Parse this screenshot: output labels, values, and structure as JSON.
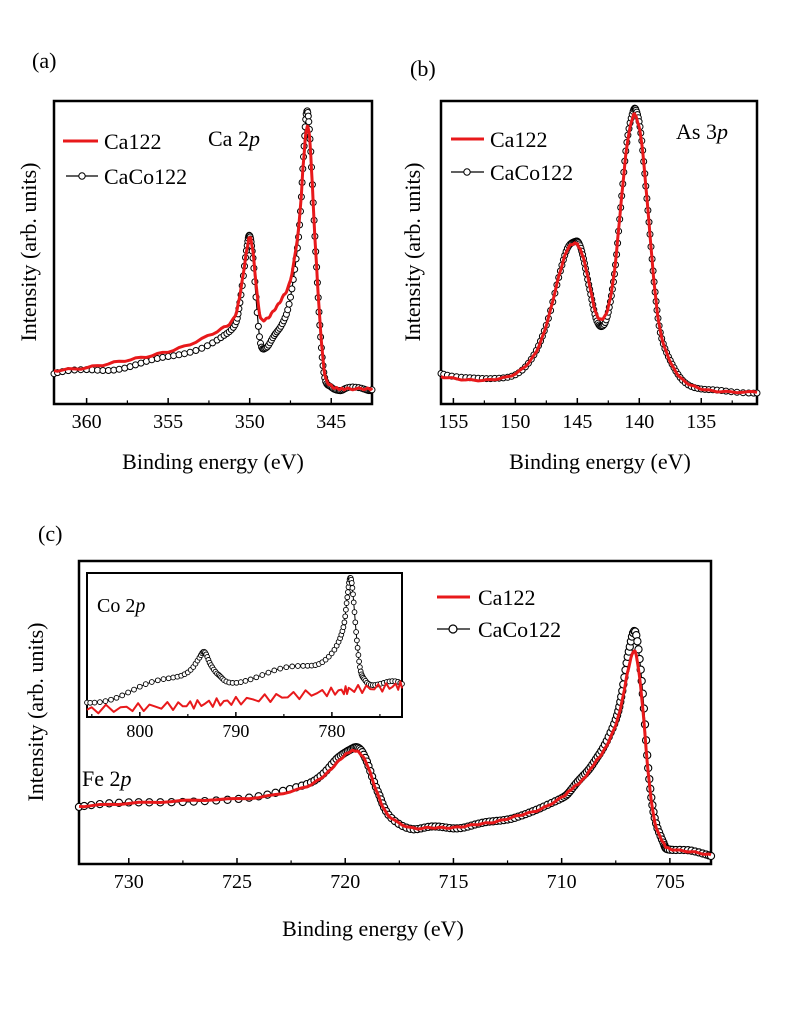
{
  "chart_data": [
    {
      "id": "a",
      "type": "line",
      "panel_label": "(a)",
      "annotation": {
        "text": "Ca ",
        "italic": "p",
        "core": "2"
      },
      "xlabel": "Binding energy (eV)",
      "ylabel": "Intensity (arb. units)",
      "xlim": [
        362,
        342.5
      ],
      "ylim": [
        0,
        1.0
      ],
      "x_ticks": [
        360,
        355,
        350,
        345
      ],
      "x_tick_labels": [
        "360",
        "355",
        "350",
        "345"
      ],
      "legend": [
        "Ca122",
        "CaCo122"
      ],
      "legend_position": "top-left",
      "series": [
        {
          "name": "Ca122",
          "color": "#e8191b",
          "marker": "none",
          "x": [
            362,
            360,
            358,
            356,
            354,
            352,
            351,
            350.6,
            350.2,
            350.0,
            349.8,
            349.4,
            349.0,
            348.5,
            348.0,
            347.5,
            347.0,
            346.7,
            346.5,
            346.3,
            346.0,
            345.7,
            345.4,
            345.0,
            344.5,
            344,
            343,
            342.5
          ],
          "y": [
            0.11,
            0.12,
            0.14,
            0.16,
            0.19,
            0.24,
            0.28,
            0.36,
            0.5,
            0.55,
            0.5,
            0.3,
            0.28,
            0.31,
            0.35,
            0.41,
            0.58,
            0.8,
            0.91,
            0.86,
            0.55,
            0.28,
            0.1,
            0.06,
            0.05,
            0.05,
            0.05,
            0.05
          ]
        },
        {
          "name": "CaCo122",
          "color": "#000000",
          "marker": "circle",
          "x": [
            362,
            360,
            358,
            356,
            354,
            352,
            351,
            350.6,
            350.2,
            350.0,
            349.8,
            349.4,
            349.0,
            348.5,
            348.0,
            347.5,
            347.0,
            346.7,
            346.5,
            346.3,
            346.0,
            345.7,
            345.4,
            345.0,
            344.5,
            344,
            343,
            342.5
          ],
          "y": [
            0.1,
            0.11,
            0.12,
            0.14,
            0.17,
            0.21,
            0.25,
            0.34,
            0.5,
            0.56,
            0.48,
            0.22,
            0.19,
            0.22,
            0.27,
            0.35,
            0.55,
            0.82,
            0.96,
            0.88,
            0.55,
            0.26,
            0.09,
            0.05,
            0.05,
            0.05,
            0.05,
            0.05
          ]
        }
      ]
    },
    {
      "id": "b",
      "type": "line",
      "panel_label": "(b)",
      "annotation": {
        "text": "As ",
        "italic": "p",
        "core": "3"
      },
      "xlabel": "Binding energy (eV)",
      "ylabel": "Intensity (arb. units)",
      "xlim": [
        156,
        130.5
      ],
      "ylim": [
        0,
        1.0
      ],
      "x_ticks": [
        155,
        150,
        145,
        140,
        135
      ],
      "x_tick_labels": [
        "155",
        "150",
        "145",
        "140",
        "135"
      ],
      "legend": [
        "Ca122",
        "CaCo122"
      ],
      "legend_position": "top-left",
      "series": [
        {
          "name": "Ca122",
          "color": "#e8191b",
          "marker": "none",
          "x": [
            156,
            154,
            152,
            150,
            148.5,
            147.5,
            146.5,
            145.8,
            145.2,
            144.9,
            144.5,
            144,
            143.5,
            143,
            142.5,
            142,
            141.5,
            141,
            140.5,
            140.2,
            139.8,
            139.3,
            138.8,
            138.3,
            137.5,
            136.5,
            135,
            133,
            130.5
          ],
          "y": [
            0.09,
            0.08,
            0.08,
            0.1,
            0.16,
            0.26,
            0.42,
            0.51,
            0.53,
            0.52,
            0.48,
            0.39,
            0.3,
            0.28,
            0.32,
            0.44,
            0.65,
            0.85,
            0.95,
            0.94,
            0.86,
            0.64,
            0.4,
            0.24,
            0.14,
            0.08,
            0.05,
            0.04,
            0.04
          ]
        },
        {
          "name": "CaCo122",
          "color": "#000000",
          "marker": "circle",
          "x": [
            156,
            154,
            152,
            150,
            148.5,
            147.5,
            146.5,
            145.8,
            145.2,
            144.9,
            144.5,
            144,
            143.5,
            143,
            142.5,
            142,
            141.5,
            141,
            140.5,
            140.2,
            139.8,
            139.3,
            138.8,
            138.3,
            137.5,
            136.5,
            135,
            133,
            130.5
          ],
          "y": [
            0.1,
            0.09,
            0.08,
            0.1,
            0.16,
            0.26,
            0.42,
            0.51,
            0.54,
            0.53,
            0.48,
            0.38,
            0.28,
            0.26,
            0.3,
            0.43,
            0.65,
            0.86,
            0.97,
            0.96,
            0.87,
            0.64,
            0.4,
            0.24,
            0.14,
            0.08,
            0.05,
            0.04,
            0.04
          ]
        }
      ]
    },
    {
      "id": "c",
      "type": "line",
      "panel_label": "(c)",
      "annotation": {
        "text": "Fe ",
        "italic": "p",
        "core": "2"
      },
      "xlabel": "Binding energy (eV)",
      "ylabel": "Intensity (arb. units)",
      "xlim": [
        732.3,
        703.1
      ],
      "ylim": [
        0,
        1.0
      ],
      "x_ticks": [
        730,
        725,
        720,
        715,
        710,
        705
      ],
      "x_tick_labels": [
        "730",
        "725",
        "720",
        "715",
        "710",
        "705"
      ],
      "legend": [
        "Ca122",
        "CaCo122"
      ],
      "legend_position": "top-right",
      "series": [
        {
          "name": "Ca122",
          "color": "#e8191b",
          "marker": "none",
          "x": [
            732.3,
            730,
            727,
            724,
            722,
            721,
            720.3,
            719.8,
            719.4,
            719.0,
            718.5,
            718,
            717,
            716,
            715,
            714,
            713,
            712,
            711,
            710,
            709.5,
            709,
            708.5,
            708,
            707.5,
            707.2,
            706.9,
            706.6,
            706.3,
            706.0,
            705.7,
            705.3,
            705,
            704,
            703.1
          ],
          "y": [
            0.19,
            0.2,
            0.21,
            0.22,
            0.25,
            0.29,
            0.34,
            0.37,
            0.37,
            0.33,
            0.23,
            0.16,
            0.12,
            0.12,
            0.12,
            0.13,
            0.14,
            0.16,
            0.18,
            0.22,
            0.25,
            0.28,
            0.33,
            0.38,
            0.46,
            0.54,
            0.65,
            0.7,
            0.55,
            0.3,
            0.14,
            0.07,
            0.05,
            0.04,
            0.03
          ]
        },
        {
          "name": "CaCo122",
          "color": "#000000",
          "marker": "circle",
          "x": [
            732.3,
            730,
            727,
            724,
            722,
            721,
            720.3,
            719.8,
            719.4,
            719.0,
            718.5,
            718,
            717,
            716,
            715,
            714,
            713,
            712,
            711,
            710,
            709.5,
            709,
            708.5,
            708,
            707.5,
            707.2,
            706.9,
            706.6,
            706.3,
            706.0,
            705.7,
            705.3,
            705,
            704,
            703.1
          ],
          "y": [
            0.19,
            0.2,
            0.21,
            0.22,
            0.26,
            0.3,
            0.35,
            0.38,
            0.38,
            0.34,
            0.24,
            0.16,
            0.12,
            0.12,
            0.12,
            0.13,
            0.14,
            0.16,
            0.18,
            0.22,
            0.25,
            0.29,
            0.34,
            0.39,
            0.48,
            0.57,
            0.7,
            0.77,
            0.6,
            0.32,
            0.15,
            0.07,
            0.05,
            0.04,
            0.03
          ]
        }
      ]
    },
    {
      "id": "c-inset",
      "type": "line",
      "annotation": {
        "text": "Co ",
        "italic": "p",
        "core": "2"
      },
      "xlim": [
        805.5,
        772.7
      ],
      "ylim": [
        0,
        1.0
      ],
      "x_ticks": [
        800,
        790,
        780
      ],
      "x_tick_labels": [
        "800",
        "790",
        "780"
      ],
      "series": [
        {
          "name": "Ca122",
          "color": "#e8191b",
          "marker": "none",
          "x": [
            805.5,
            802,
            799,
            796,
            794,
            792,
            790,
            787,
            784,
            781,
            779,
            778,
            776,
            774,
            772.7
          ],
          "y": [
            0.05,
            0.06,
            0.07,
            0.08,
            0.09,
            0.1,
            0.11,
            0.13,
            0.15,
            0.17,
            0.18,
            0.19,
            0.2,
            0.21,
            0.22
          ]
        },
        {
          "name": "CaCo122",
          "color": "#000000",
          "marker": "circle",
          "x": [
            805.5,
            803,
            800,
            797,
            795,
            793.8,
            793.2,
            792.6,
            791.8,
            791,
            789,
            786,
            783,
            781,
            779.5,
            778.8,
            778.4,
            778.1,
            777.8,
            777.4,
            777,
            776.5,
            775.5,
            774,
            772.7
          ],
          "y": [
            0.09,
            0.14,
            0.2,
            0.26,
            0.33,
            0.4,
            0.44,
            0.38,
            0.28,
            0.24,
            0.27,
            0.31,
            0.35,
            0.4,
            0.48,
            0.62,
            0.85,
            0.95,
            0.85,
            0.55,
            0.3,
            0.25,
            0.24,
            0.23,
            0.23
          ]
        }
      ]
    }
  ]
}
